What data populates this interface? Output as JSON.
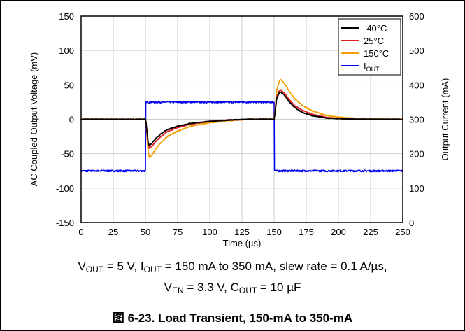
{
  "chart_data": {
    "type": "line",
    "xlabel": "Time (µs)",
    "ylabel_left": "AC Coupled Output Voltage (mV)",
    "ylabel_right": "Output Current (mA)",
    "xlim": [
      0,
      250
    ],
    "ylim_left": [
      -150,
      150
    ],
    "ylim_right": [
      0,
      600
    ],
    "x_ticks": [
      "0",
      "25",
      "50",
      "75",
      "100",
      "125",
      "150",
      "175",
      "200",
      "225",
      "250"
    ],
    "y_ticks_left": [
      "150",
      "100",
      "50",
      "0",
      "-50",
      "-100",
      "-150"
    ],
    "y_ticks_right": [
      "600",
      "500",
      "400",
      "300",
      "200",
      "100",
      "0"
    ],
    "grid": true,
    "legend_position": "top-right",
    "series": [
      {
        "name": "-40°C",
        "color": "#000000",
        "axis": "left",
        "points": [
          [
            0,
            0
          ],
          [
            50,
            0
          ],
          [
            50.5,
            -5
          ],
          [
            52,
            -32
          ],
          [
            53,
            -38
          ],
          [
            55,
            -35
          ],
          [
            58,
            -28
          ],
          [
            62,
            -21
          ],
          [
            67,
            -15
          ],
          [
            75,
            -10
          ],
          [
            85,
            -6
          ],
          [
            100,
            -3
          ],
          [
            115,
            -1
          ],
          [
            130,
            0
          ],
          [
            150,
            0
          ],
          [
            150.5,
            6
          ],
          [
            152,
            30
          ],
          [
            154,
            38
          ],
          [
            155,
            40
          ],
          [
            158,
            35
          ],
          [
            162,
            25
          ],
          [
            166,
            17
          ],
          [
            172,
            10
          ],
          [
            180,
            5
          ],
          [
            190,
            2
          ],
          [
            200,
            1
          ],
          [
            215,
            0
          ],
          [
            250,
            0
          ]
        ]
      },
      {
        "name": "25°C",
        "color": "#e02020",
        "axis": "left",
        "points": [
          [
            0,
            0
          ],
          [
            50,
            0
          ],
          [
            50.5,
            -5
          ],
          [
            52,
            -35
          ],
          [
            53,
            -42
          ],
          [
            55,
            -39
          ],
          [
            58,
            -32
          ],
          [
            62,
            -25
          ],
          [
            67,
            -18
          ],
          [
            75,
            -12
          ],
          [
            85,
            -7
          ],
          [
            100,
            -3
          ],
          [
            115,
            -1
          ],
          [
            130,
            0
          ],
          [
            150,
            0
          ],
          [
            150.5,
            6
          ],
          [
            152,
            33
          ],
          [
            154,
            41
          ],
          [
            155,
            43
          ],
          [
            158,
            38
          ],
          [
            162,
            28
          ],
          [
            166,
            20
          ],
          [
            172,
            13
          ],
          [
            180,
            7
          ],
          [
            190,
            3
          ],
          [
            200,
            1
          ],
          [
            215,
            0
          ],
          [
            250,
            0
          ]
        ]
      },
      {
        "name": "150°C",
        "color": "#f5a000",
        "axis": "left",
        "points": [
          [
            0,
            0
          ],
          [
            50,
            0
          ],
          [
            50.5,
            -6
          ],
          [
            52,
            -45
          ],
          [
            53,
            -55
          ],
          [
            55,
            -52
          ],
          [
            58,
            -43
          ],
          [
            62,
            -34
          ],
          [
            67,
            -25
          ],
          [
            75,
            -17
          ],
          [
            85,
            -10
          ],
          [
            100,
            -5
          ],
          [
            115,
            -2
          ],
          [
            130,
            0
          ],
          [
            150,
            0
          ],
          [
            150.5,
            8
          ],
          [
            152,
            42
          ],
          [
            154,
            55
          ],
          [
            155,
            58
          ],
          [
            158,
            52
          ],
          [
            162,
            40
          ],
          [
            166,
            30
          ],
          [
            172,
            20
          ],
          [
            180,
            12
          ],
          [
            190,
            6
          ],
          [
            200,
            3
          ],
          [
            215,
            1
          ],
          [
            250,
            0
          ]
        ]
      },
      {
        "name": "IOUT",
        "color": "#0000ee",
        "axis": "right",
        "points": [
          [
            0,
            150
          ],
          [
            50,
            150
          ],
          [
            50.3,
            350
          ],
          [
            150,
            350
          ],
          [
            150.3,
            150
          ],
          [
            250,
            150
          ]
        ]
      }
    ]
  },
  "caption": {
    "line1": {
      "v_out_prefix": "V",
      "v_out_sub": "OUT",
      "v_out_value": " = 5 V, ",
      "i_out_prefix": "I",
      "i_out_sub": "OUT",
      "rest": " = 150 mA to 350 mA, slew rate = 0.1 A/µs,"
    },
    "line2": {
      "v_en_prefix": "V",
      "v_en_sub": "EN",
      "v_en_value": " = 3.3 V, ",
      "c_out_prefix": "C",
      "c_out_sub": "OUT",
      "c_out_value": " = 10 µF"
    },
    "figure": "图 6-23. Load Transient, 150-mA to 350-mA"
  }
}
